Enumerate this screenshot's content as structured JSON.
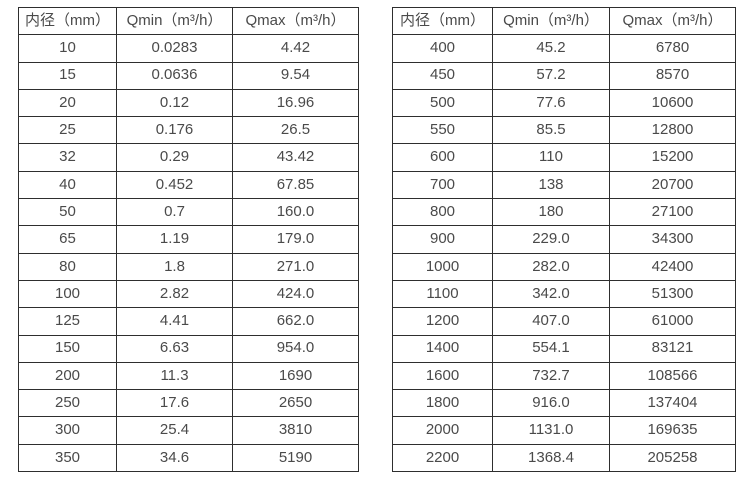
{
  "page": {
    "background_color": "#ffffff",
    "text_color": "#4a4a4a",
    "border_color": "#2e2e2e"
  },
  "tables": [
    {
      "name": "flow-rate-table-small-diameters",
      "headers": [
        "内径（mm）",
        "Qmin（m³/h）",
        "Qmax（m³/h）"
      ],
      "rows": [
        [
          "10",
          "0.0283",
          "4.42"
        ],
        [
          "15",
          "0.0636",
          "9.54"
        ],
        [
          "20",
          "0.12",
          "16.96"
        ],
        [
          "25",
          "0.176",
          "26.5"
        ],
        [
          "32",
          "0.29",
          "43.42"
        ],
        [
          "40",
          "0.452",
          "67.85"
        ],
        [
          "50",
          "0.7",
          "160.0"
        ],
        [
          "65",
          "1.19",
          "179.0"
        ],
        [
          "80",
          "1.8",
          "271.0"
        ],
        [
          "100",
          "2.82",
          "424.0"
        ],
        [
          "125",
          "4.41",
          "662.0"
        ],
        [
          "150",
          "6.63",
          "954.0"
        ],
        [
          "200",
          "11.3",
          "1690"
        ],
        [
          "250",
          "17.6",
          "2650"
        ],
        [
          "300",
          "25.4",
          "3810"
        ],
        [
          "350",
          "34.6",
          "5190"
        ]
      ]
    },
    {
      "name": "flow-rate-table-large-diameters",
      "headers": [
        "内径（mm）",
        "Qmin（m³/h）",
        "Qmax（m³/h）"
      ],
      "rows": [
        [
          "400",
          "45.2",
          "6780"
        ],
        [
          "450",
          "57.2",
          "8570"
        ],
        [
          "500",
          "77.6",
          "10600"
        ],
        [
          "550",
          "85.5",
          "12800"
        ],
        [
          "600",
          "110",
          "15200"
        ],
        [
          "700",
          "138",
          "20700"
        ],
        [
          "800",
          "180",
          "27100"
        ],
        [
          "900",
          "229.0",
          "34300"
        ],
        [
          "1000",
          "282.0",
          "42400"
        ],
        [
          "1100",
          "342.0",
          "51300"
        ],
        [
          "1200",
          "407.0",
          "61000"
        ],
        [
          "1400",
          "554.1",
          "83121"
        ],
        [
          "1600",
          "732.7",
          "108566"
        ],
        [
          "1800",
          "916.0",
          "137404"
        ],
        [
          "2000",
          "1131.0",
          "169635"
        ],
        [
          "2200",
          "1368.4",
          "205258"
        ]
      ]
    }
  ]
}
